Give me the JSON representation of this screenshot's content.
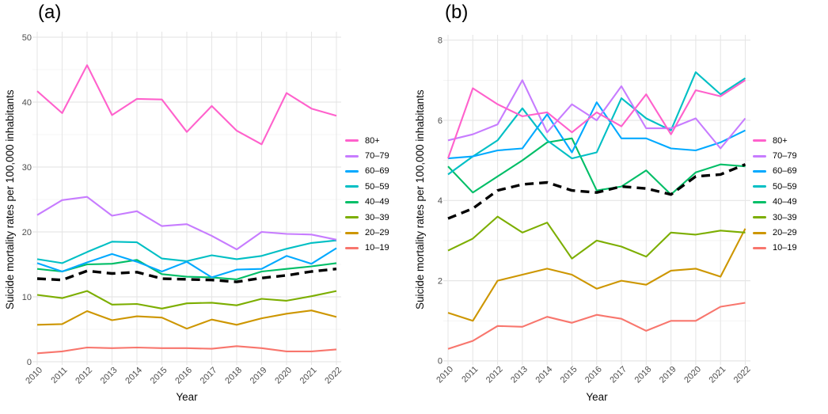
{
  "chart_data": [
    {
      "id": "a",
      "type": "line",
      "title": "(a)",
      "xlabel": "Year",
      "ylabel": "Suicide mortality rates per 100,000 inhabitants",
      "x": [
        2010,
        2011,
        2012,
        2013,
        2014,
        2015,
        2016,
        2017,
        2018,
        2019,
        2020,
        2021,
        2022
      ],
      "xtick_labels": [
        "2010",
        "2011",
        "2012",
        "2013",
        "2014",
        "2015",
        "2016",
        "2017",
        "2018",
        "2019",
        "2020",
        "2021",
        "2022"
      ],
      "ylim": [
        0,
        50
      ],
      "yticks": [
        0,
        10,
        20,
        30,
        40,
        50
      ],
      "ytick_labels": [
        "0",
        "10",
        "20",
        "30",
        "40",
        "50"
      ],
      "yticks_minor": [
        5,
        15,
        25,
        35,
        45
      ],
      "grid": true,
      "legend_position": "right",
      "series": [
        {
          "name": "80+",
          "color": "#FF61CC",
          "dashed": false,
          "values": [
            41.7,
            38.3,
            45.7,
            38.0,
            40.5,
            40.4,
            35.4,
            39.4,
            35.6,
            33.5,
            41.4,
            39.0,
            37.9
          ]
        },
        {
          "name": "70–79",
          "color": "#C77CFF",
          "dashed": false,
          "values": [
            22.6,
            24.9,
            25.4,
            22.5,
            23.2,
            20.9,
            21.2,
            19.4,
            17.3,
            20.0,
            19.7,
            19.6,
            18.8
          ]
        },
        {
          "name": "60–69",
          "color": "#00A9FF",
          "dashed": false,
          "values": [
            15.2,
            13.9,
            15.3,
            16.6,
            15.4,
            13.9,
            15.4,
            13.0,
            14.2,
            14.3,
            16.3,
            15.1,
            17.5
          ]
        },
        {
          "name": "50–59",
          "color": "#00BFC4",
          "dashed": false,
          "values": [
            15.8,
            15.2,
            16.9,
            18.5,
            18.4,
            15.9,
            15.5,
            16.4,
            15.8,
            16.3,
            17.4,
            18.3,
            18.7
          ]
        },
        {
          "name": "40–49",
          "color": "#00BE67",
          "dashed": false,
          "values": [
            14.3,
            13.9,
            15.0,
            15.1,
            15.7,
            13.5,
            13.1,
            13.0,
            12.7,
            13.9,
            14.3,
            14.7,
            15.2
          ]
        },
        {
          "name": "30–39",
          "color": "#7CAE00",
          "dashed": false,
          "values": [
            10.3,
            9.8,
            10.9,
            8.8,
            8.9,
            8.2,
            9.0,
            9.1,
            8.7,
            9.7,
            9.4,
            10.1,
            10.9
          ]
        },
        {
          "name": "20–29",
          "color": "#CD9600",
          "dashed": false,
          "values": [
            5.7,
            5.8,
            7.8,
            6.4,
            7.0,
            6.8,
            5.1,
            6.5,
            5.7,
            6.7,
            7.4,
            7.9,
            6.9
          ]
        },
        {
          "name": "10–19",
          "color": "#F8766D",
          "dashed": false,
          "values": [
            1.3,
            1.6,
            2.2,
            2.1,
            2.2,
            2.1,
            2.1,
            2.0,
            2.4,
            2.1,
            1.6,
            1.6,
            1.9
          ]
        },
        {
          "name": "",
          "color": "#000000",
          "dashed": true,
          "values": [
            12.8,
            12.6,
            14.0,
            13.6,
            13.8,
            12.8,
            12.7,
            12.6,
            12.3,
            12.9,
            13.3,
            13.9,
            14.3
          ]
        }
      ]
    },
    {
      "id": "b",
      "type": "line",
      "title": "(b)",
      "xlabel": "Year",
      "ylabel": "Suicide mortality rates per 100,000 inhabitants",
      "x": [
        2010,
        2011,
        2012,
        2013,
        2014,
        2015,
        2016,
        2017,
        2018,
        2019,
        2020,
        2021,
        2022
      ],
      "xtick_labels": [
        "2010",
        "2011",
        "2012",
        "2013",
        "2014",
        "2015",
        "2016",
        "2017",
        "2018",
        "2019",
        "2020",
        "2021",
        "2022"
      ],
      "ylim": [
        0,
        8
      ],
      "yticks": [
        0,
        2,
        4,
        6,
        8
      ],
      "ytick_labels": [
        "0",
        "2",
        "4",
        "6",
        "8"
      ],
      "yticks_minor": [
        1,
        3,
        5,
        7
      ],
      "grid": true,
      "legend_position": "right",
      "series": [
        {
          "name": "80+",
          "color": "#FF61CC",
          "dashed": false,
          "values": [
            5.05,
            6.8,
            6.4,
            6.1,
            6.2,
            5.7,
            6.2,
            5.85,
            6.65,
            5.65,
            6.75,
            6.6,
            7.0
          ]
        },
        {
          "name": "70–79",
          "color": "#C77CFF",
          "dashed": false,
          "values": [
            5.5,
            5.65,
            5.9,
            7.0,
            5.7,
            6.4,
            6.0,
            6.85,
            5.8,
            5.8,
            6.05,
            5.3,
            6.05
          ]
        },
        {
          "name": "60–69",
          "color": "#00A9FF",
          "dashed": false,
          "values": [
            5.05,
            5.1,
            5.25,
            5.3,
            6.15,
            5.2,
            6.45,
            5.55,
            5.55,
            5.3,
            5.25,
            5.45,
            5.75
          ]
        },
        {
          "name": "50–59",
          "color": "#00BFC4",
          "dashed": false,
          "values": [
            4.65,
            5.1,
            5.5,
            6.3,
            5.5,
            5.05,
            5.2,
            6.55,
            6.05,
            5.75,
            7.2,
            6.65,
            7.05
          ]
        },
        {
          "name": "40–49",
          "color": "#00BE67",
          "dashed": false,
          "values": [
            4.85,
            4.2,
            4.6,
            5.0,
            5.45,
            5.55,
            4.25,
            4.35,
            4.75,
            4.15,
            4.7,
            4.9,
            4.85
          ]
        },
        {
          "name": "30–39",
          "color": "#7CAE00",
          "dashed": false,
          "values": [
            2.75,
            3.05,
            3.6,
            3.2,
            3.45,
            2.55,
            3.0,
            2.85,
            2.6,
            3.2,
            3.15,
            3.25,
            3.2
          ]
        },
        {
          "name": "20–29",
          "color": "#CD9600",
          "dashed": false,
          "values": [
            1.2,
            1.0,
            2.0,
            2.15,
            2.3,
            2.15,
            1.8,
            2.0,
            1.9,
            2.25,
            2.3,
            2.1,
            3.3
          ]
        },
        {
          "name": "10–19",
          "color": "#F8766D",
          "dashed": false,
          "values": [
            0.3,
            0.5,
            0.87,
            0.85,
            1.1,
            0.95,
            1.15,
            1.05,
            0.75,
            1.0,
            1.0,
            1.35,
            1.45
          ]
        },
        {
          "name": "",
          "color": "#000000",
          "dashed": true,
          "values": [
            3.55,
            3.8,
            4.25,
            4.4,
            4.45,
            4.25,
            4.2,
            4.35,
            4.3,
            4.15,
            4.6,
            4.65,
            4.9
          ]
        }
      ]
    }
  ],
  "style": {
    "grid_major_color": "#e6e6e6",
    "grid_minor_color": "#f0f0f0",
    "tick_label_color": "#4d4d4d",
    "axis_title_color": "#0a0a0a"
  }
}
